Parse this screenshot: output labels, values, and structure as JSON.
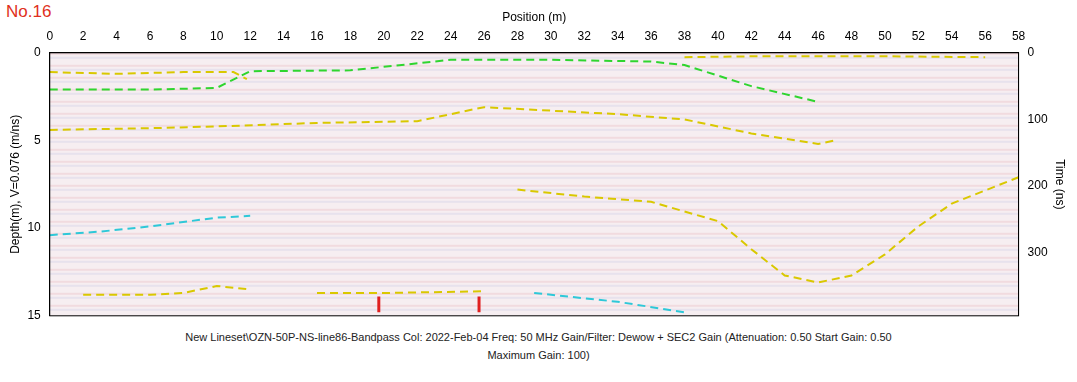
{
  "chart_data": {
    "type": "line",
    "title": "No.16",
    "x_label": "Position (m)",
    "y_label": "Depth(m), V=0.076 (m/ns)",
    "y2_label": "Time (ns)",
    "caption": [
      "New Lineset\\OZN-50P-NS-line86-Bandpass  Col: 2022-Feb-04  Freq: 50 MHz  Gain/Filter: Dewow + SEC2 Gain (Attenuation: 0.50  Start Gain: 0.50",
      "Maximum Gain: 100)"
    ],
    "xlim": [
      0,
      58
    ],
    "xticks": [
      0,
      2,
      4,
      6,
      8,
      10,
      12,
      14,
      16,
      18,
      20,
      22,
      24,
      26,
      28,
      30,
      32,
      34,
      36,
      38,
      40,
      42,
      44,
      46,
      48,
      50,
      52,
      54,
      56,
      58
    ],
    "ylim": [
      0,
      15
    ],
    "yticks": [
      0,
      5,
      10,
      15
    ],
    "y2lim": [
      0,
      395
    ],
    "y2ticks": [
      0,
      100,
      200,
      300
    ],
    "grid": false,
    "series": [
      {
        "color": "#d9c800",
        "line_style": "dashed",
        "x": [
          0,
          4,
          8,
          11,
          11.8
        ],
        "values": [
          1.1,
          1.2,
          1.1,
          1.1,
          1.5
        ]
      },
      {
        "color": "#2fd52f",
        "line_style": "dashed",
        "x": [
          0,
          6,
          10,
          12,
          18,
          24,
          30,
          36,
          38,
          42,
          46
        ],
        "values": [
          2.1,
          2.1,
          2.0,
          1.05,
          1.0,
          0.4,
          0.4,
          0.5,
          0.7,
          1.9,
          2.8
        ]
      },
      {
        "color": "#d9c800",
        "line_style": "dashed",
        "x": [
          38,
          42,
          46,
          50,
          56
        ],
        "values": [
          0.25,
          0.2,
          0.2,
          0.2,
          0.25
        ]
      },
      {
        "color": "#d9c800",
        "line_style": "dashed",
        "x": [
          0,
          6,
          10,
          16,
          22,
          26,
          30,
          34,
          38,
          42,
          46,
          47
        ],
        "values": [
          4.4,
          4.3,
          4.2,
          4.0,
          3.9,
          3.1,
          3.3,
          3.5,
          3.8,
          4.6,
          5.2,
          5.0
        ]
      },
      {
        "color": "#2ec8d8",
        "line_style": "dashed",
        "x": [
          0,
          3,
          6,
          10,
          12
        ],
        "values": [
          10.4,
          10.2,
          9.9,
          9.4,
          9.3
        ]
      },
      {
        "color": "#d9c800",
        "line_style": "dashed",
        "x": [
          28,
          32,
          36,
          40,
          42,
          44,
          46,
          48,
          50,
          52,
          54,
          58
        ],
        "values": [
          7.8,
          8.2,
          8.5,
          9.6,
          11.2,
          12.7,
          13.1,
          12.7,
          11.5,
          9.9,
          8.6,
          7.1
        ]
      },
      {
        "color": "#d9c800",
        "line_style": "dashed",
        "x": [
          2,
          6,
          8,
          10,
          12
        ],
        "values": [
          13.8,
          13.8,
          13.7,
          13.3,
          13.5
        ]
      },
      {
        "color": "#d9c800",
        "line_style": "dashed",
        "x": [
          16,
          20,
          26
        ],
        "values": [
          13.7,
          13.7,
          13.6
        ]
      },
      {
        "color": "#2ec8d8",
        "line_style": "dashed",
        "x": [
          29,
          34,
          38
        ],
        "values": [
          13.7,
          14.2,
          14.8
        ]
      },
      {
        "color": "#e02020",
        "line_style": "solid",
        "x": [
          19.7,
          19.7
        ],
        "values": [
          13.9,
          14.8
        ]
      },
      {
        "color": "#e02020",
        "line_style": "solid",
        "x": [
          25.7,
          25.7
        ],
        "values": [
          13.9,
          14.8
        ]
      }
    ]
  }
}
